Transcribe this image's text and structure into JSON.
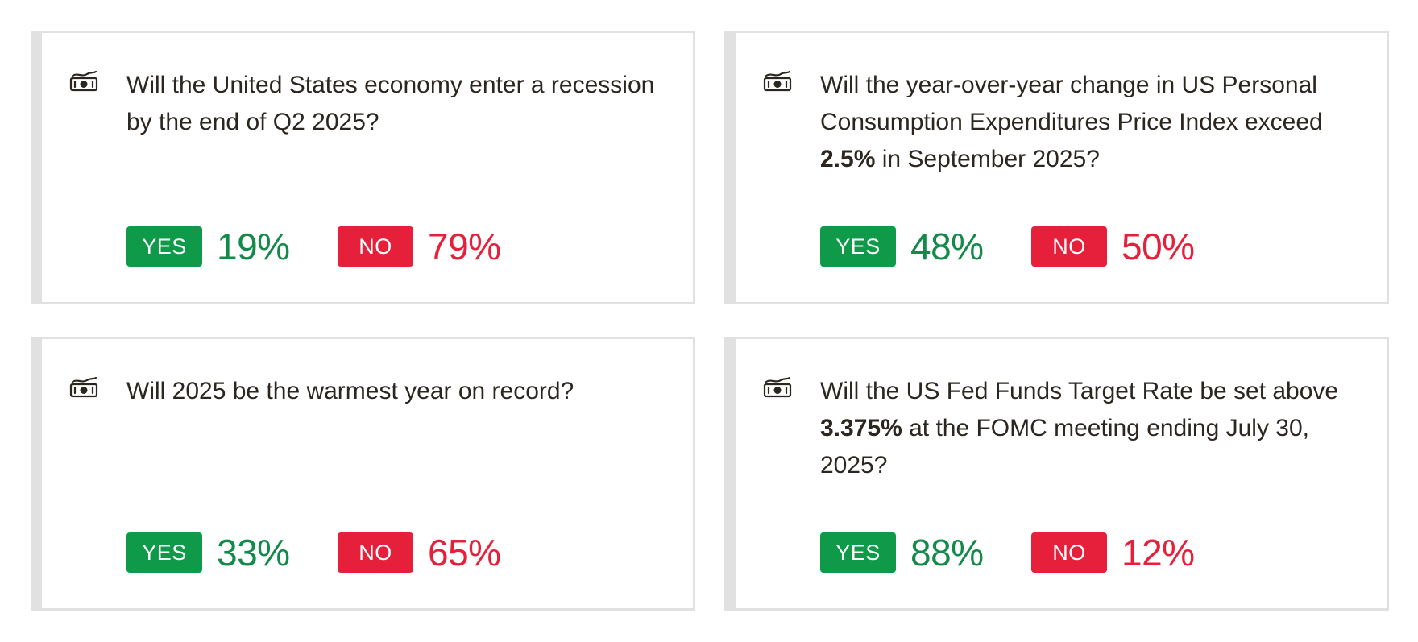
{
  "cards": [
    {
      "icon": "cash-icon",
      "question_parts": [
        "Will the United States economy enter a recession by the end of Q2 2025?",
        "",
        ""
      ],
      "yes_label": "YES",
      "yes_pct": "19%",
      "no_label": "NO",
      "no_pct": "79%"
    },
    {
      "icon": "cash-icon",
      "question_parts": [
        "Will the year-over-year change in US Personal Consumption Expenditures Price Index exceed ",
        "2.5%",
        " in September 2025?"
      ],
      "yes_label": "YES",
      "yes_pct": "48%",
      "no_label": "NO",
      "no_pct": "50%"
    },
    {
      "icon": "cash-icon",
      "question_parts": [
        "Will 2025 be the warmest year on record?",
        "",
        ""
      ],
      "yes_label": "YES",
      "yes_pct": "33%",
      "no_label": "NO",
      "no_pct": "65%"
    },
    {
      "icon": "cash-icon",
      "question_parts": [
        "Will the US Fed Funds Target Rate be set above ",
        "3.375%",
        " at the FOMC meeting ending July 30, 2025?"
      ],
      "yes_label": "YES",
      "yes_pct": "88%",
      "no_label": "NO",
      "no_pct": "12%"
    }
  ],
  "colors": {
    "yes": "#0f9a4a",
    "yes_text": "#138a4a",
    "no": "#e6203a",
    "border": "#e1e1e1",
    "text": "#2b2620"
  }
}
